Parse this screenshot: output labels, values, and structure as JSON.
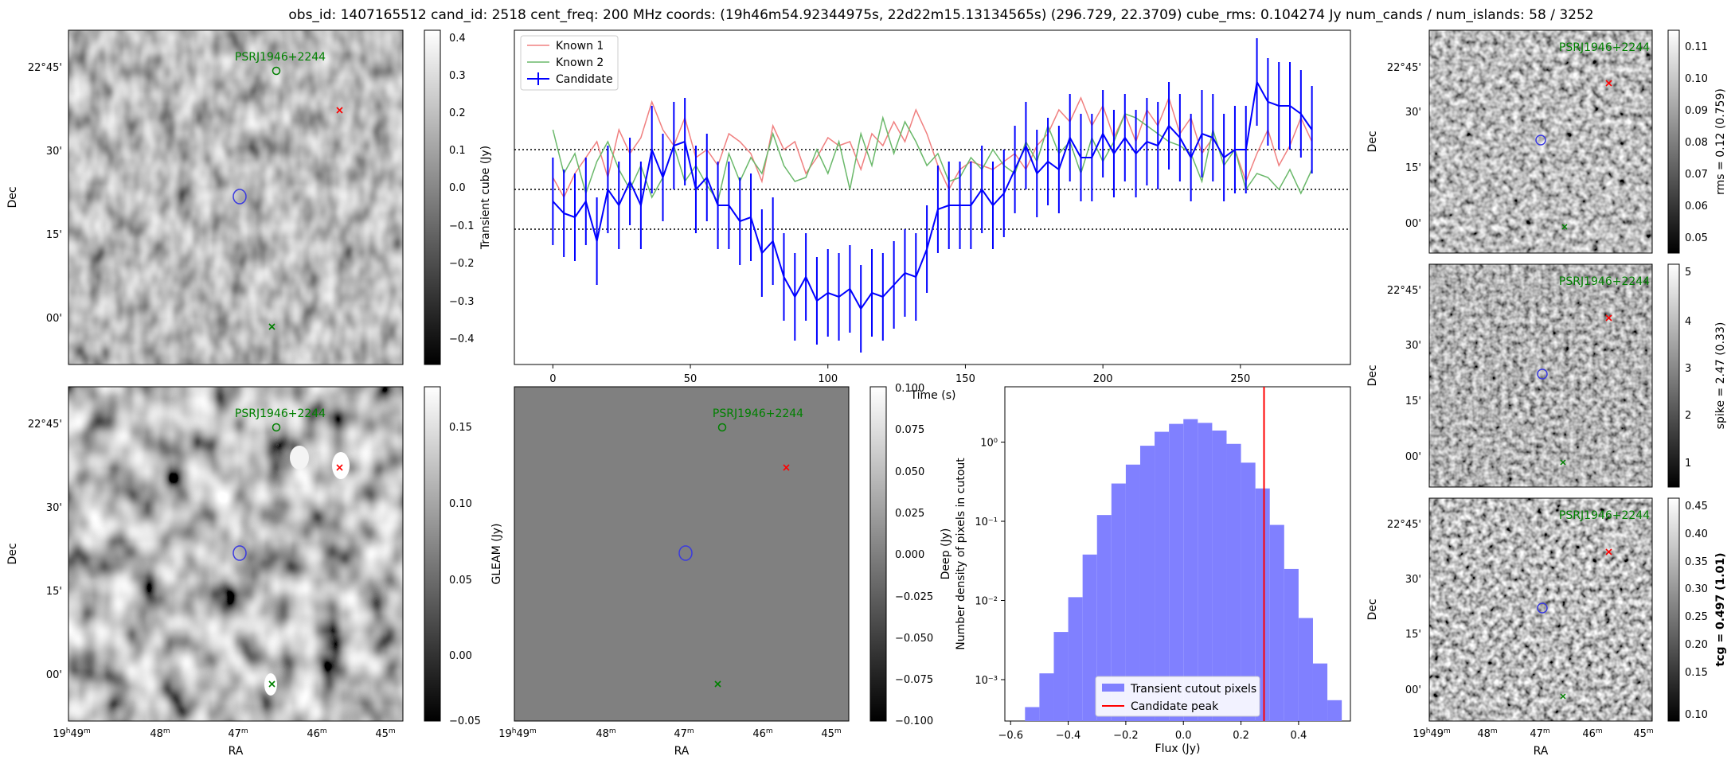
{
  "suptitle": "obs_id: 1407165512 cand_id: 2518 cent_freq: 200 MHz coords: (19h46m54.92344975s, 22d22m15.13134565s) (296.729, 22.3709) cube_rms: 0.104274 Jy num_cands / num_islands: 58 / 3252",
  "colors": {
    "known1": "#f08080",
    "known2": "#6ab86a",
    "candidate": "#0000ff",
    "hist": "#8080ff",
    "peak": "#ff0000",
    "source": "#008000",
    "crossred": "#ff0000",
    "contour": "#3a3ae0"
  },
  "skymap": {
    "ra_ticks": [
      "19h49m",
      "48m",
      "47m",
      "46m",
      "45m"
    ],
    "dec_ticks": [
      "22°45'",
      "30'",
      "15'",
      "00'"
    ],
    "ra_label": "RA",
    "dec_label": "Dec",
    "source_label": "PSRJ1946+2244"
  },
  "panels": {
    "transient": {
      "colorbar_label": "Transient cube (Jy)",
      "ticks": [
        "0.4",
        "0.3",
        "0.2",
        "0.1",
        "0.0",
        "−0.1",
        "−0.2",
        "−0.3",
        "−0.4"
      ]
    },
    "deep": {
      "colorbar_label": "Deep (Jy)",
      "ticks": [
        "0.15",
        "0.10",
        "0.05",
        "0.00",
        "−0.05"
      ]
    },
    "gleam": {
      "colorbar_label": "GLEAM (Jy)",
      "ticks": [
        "0.100",
        "0.075",
        "0.050",
        "0.025",
        "0.000",
        "−0.025",
        "−0.050",
        "−0.075",
        "−0.100"
      ]
    },
    "rms": {
      "colorbar_label": "rms = 0.12 (0.759)",
      "ticks": [
        "0.11",
        "0.10",
        "0.09",
        "0.08",
        "0.07",
        "0.06",
        "0.05"
      ]
    },
    "spike": {
      "colorbar_label": "spike = 2.47 (0.33)",
      "ticks": [
        "5",
        "4",
        "3",
        "2",
        "1"
      ]
    },
    "tcg": {
      "colorbar_label": "tcg = 0.497 (1.01)",
      "ticks": [
        "0.45",
        "0.40",
        "0.35",
        "0.30",
        "0.25",
        "0.20",
        "0.15",
        "0.10"
      ]
    }
  },
  "chart_data": [
    {
      "type": "line",
      "title": "",
      "xlabel": "Time (s)",
      "ylabel": "",
      "xlim": [
        -14,
        290
      ],
      "ylim": [
        -0.44,
        0.4
      ],
      "xticks": [
        0,
        50,
        100,
        150,
        200,
        250
      ],
      "hlines": [
        0.1,
        0.0,
        -0.1
      ],
      "legend": [
        "Known 1",
        "Known 2",
        "Candidate"
      ],
      "x": [
        0,
        4,
        8,
        12,
        16,
        20,
        24,
        28,
        32,
        36,
        40,
        44,
        48,
        52,
        56,
        60,
        64,
        68,
        72,
        76,
        80,
        84,
        88,
        92,
        96,
        100,
        104,
        108,
        112,
        116,
        120,
        124,
        128,
        132,
        136,
        140,
        144,
        148,
        152,
        156,
        160,
        164,
        168,
        172,
        176,
        180,
        184,
        188,
        192,
        196,
        200,
        204,
        208,
        212,
        216,
        220,
        224,
        228,
        232,
        236,
        240,
        244,
        248,
        252,
        256,
        260,
        264,
        268,
        272,
        276
      ],
      "series": [
        {
          "name": "Known 1",
          "values": [
            0.03,
            -0.02,
            0.04,
            0.08,
            0.12,
            0.03,
            0.15,
            0.09,
            0.13,
            0.22,
            0.15,
            0.11,
            0.18,
            0.08,
            0.1,
            0.06,
            0.14,
            0.12,
            0.09,
            0.02,
            0.16,
            0.1,
            0.12,
            0.04,
            0.08,
            0.13,
            0.11,
            0.12,
            0.05,
            0.14,
            0.11,
            0.17,
            0.12,
            0.2,
            0.14,
            0.06,
            0.0,
            0.05,
            0.07,
            0.06,
            0.05,
            0.07,
            0.09,
            0.05,
            0.11,
            0.14,
            0.2,
            0.17,
            0.23,
            0.16,
            0.21,
            0.13,
            0.19,
            0.12,
            0.2,
            0.16,
            0.23,
            0.14,
            0.18,
            0.09,
            0.13,
            0.08,
            0.1,
            0.02,
            0.09,
            0.15,
            0.06,
            0.11,
            0.18,
            0.12
          ]
        },
        {
          "name": "Known 2",
          "values": [
            0.15,
            0.04,
            0.09,
            -0.01,
            0.07,
            0.12,
            0.05,
            0.0,
            0.06,
            -0.02,
            0.03,
            0.11,
            0.02,
            0.06,
            0.01,
            -0.03,
            0.09,
            0.02,
            0.08,
            0.04,
            0.14,
            0.06,
            0.02,
            0.03,
            0.1,
            0.04,
            0.12,
            0.0,
            0.14,
            0.06,
            0.18,
            0.09,
            0.17,
            0.12,
            0.06,
            0.09,
            0.02,
            0.03,
            0.08,
            0.05,
            0.1,
            0.06,
            0.04,
            0.12,
            0.07,
            0.16,
            0.09,
            0.12,
            0.04,
            0.13,
            0.07,
            0.12,
            0.19,
            0.18,
            0.16,
            0.14,
            0.12,
            0.11,
            0.09,
            0.02,
            0.15,
            0.06,
            0.1,
            0.0,
            0.04,
            0.03,
            0.0,
            0.05,
            -0.01,
            0.05
          ]
        },
        {
          "name": "Candidate",
          "values": [
            -0.03,
            -0.06,
            -0.07,
            -0.03,
            -0.13,
            0.0,
            -0.04,
            0.02,
            -0.04,
            0.1,
            0.03,
            0.11,
            0.12,
            0.0,
            0.03,
            -0.04,
            -0.04,
            -0.08,
            -0.07,
            -0.16,
            -0.13,
            -0.22,
            -0.27,
            -0.22,
            -0.28,
            -0.26,
            -0.27,
            -0.25,
            -0.3,
            -0.26,
            -0.27,
            -0.24,
            -0.21,
            -0.22,
            -0.15,
            -0.05,
            -0.04,
            -0.04,
            -0.04,
            0.0,
            -0.04,
            -0.01,
            0.05,
            0.11,
            0.04,
            0.07,
            0.05,
            0.13,
            0.08,
            0.08,
            0.14,
            0.09,
            0.13,
            0.09,
            0.12,
            0.11,
            0.16,
            0.13,
            0.08,
            0.14,
            0.13,
            0.08,
            0.1,
            0.1,
            0.27,
            0.22,
            0.21,
            0.21,
            0.19,
            0.15
          ],
          "error": 0.11
        }
      ]
    },
    {
      "type": "bar",
      "title": "",
      "xlabel": "Flux (Jy)",
      "ylabel": "Number density of pixels in cutout",
      "yscale": "log",
      "xlim": [
        -0.62,
        0.58
      ],
      "ylim": [
        0.0003,
        5
      ],
      "xticks": [
        -0.6,
        -0.4,
        -0.2,
        0.0,
        0.2,
        0.4
      ],
      "yticks": [
        "10⁰",
        "10⁻¹",
        "10⁻²",
        "10⁻³"
      ],
      "legend": [
        "Transient cutout pixels",
        "Candidate peak"
      ],
      "bin_edges": [
        -0.55,
        -0.5,
        -0.45,
        -0.4,
        -0.35,
        -0.3,
        -0.25,
        -0.2,
        -0.15,
        -0.1,
        -0.05,
        0.0,
        0.05,
        0.1,
        0.15,
        0.2,
        0.25,
        0.3,
        0.35,
        0.4,
        0.45,
        0.5,
        0.55
      ],
      "values": [
        0.00045,
        0.0012,
        0.004,
        0.011,
        0.038,
        0.12,
        0.3,
        0.52,
        0.9,
        1.35,
        1.7,
        1.95,
        1.75,
        1.4,
        0.95,
        0.55,
        0.26,
        0.09,
        0.025,
        0.006,
        0.0016,
        0.00055
      ],
      "vline": 0.28
    }
  ]
}
